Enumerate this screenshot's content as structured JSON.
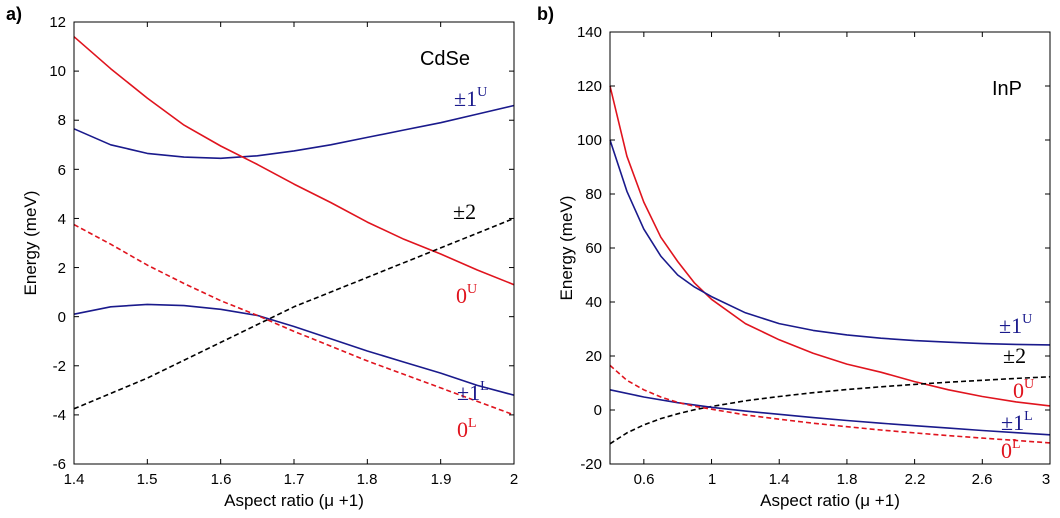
{
  "chart_data": [
    {
      "type": "line",
      "panel_label": "a)",
      "material": "CdSe",
      "xlabel": "Aspect ratio (μ +1)",
      "ylabel": "Energy (meV)",
      "xlim": [
        1.4,
        2.0
      ],
      "ylim": [
        -6,
        12
      ],
      "xticks": [
        "1.4",
        "1.5",
        "1.6",
        "1.7",
        "1.8",
        "1.9",
        "2"
      ],
      "yticks": [
        "-6",
        "-4",
        "-2",
        "0",
        "2",
        "4",
        "6",
        "8",
        "10",
        "12"
      ],
      "grid": false,
      "series": [
        {
          "name": "±1",
          "sup": "U",
          "color": "#1a1a8c",
          "dash": false,
          "x": [
            1.4,
            1.45,
            1.5,
            1.55,
            1.6,
            1.65,
            1.7,
            1.75,
            1.8,
            1.85,
            1.9,
            1.95,
            2.0
          ],
          "y": [
            7.65,
            7.0,
            6.65,
            6.5,
            6.45,
            6.55,
            6.75,
            7.0,
            7.3,
            7.6,
            7.9,
            8.25,
            8.6
          ]
        },
        {
          "name": "0",
          "sup": "U",
          "color": "#e0141e",
          "dash": false,
          "x": [
            1.4,
            1.45,
            1.5,
            1.55,
            1.6,
            1.65,
            1.7,
            1.75,
            1.8,
            1.85,
            1.9,
            1.95,
            2.0
          ],
          "y": [
            11.4,
            10.1,
            8.9,
            7.8,
            6.95,
            6.2,
            5.4,
            4.65,
            3.85,
            3.15,
            2.55,
            1.9,
            1.3
          ]
        },
        {
          "name": "±2",
          "sup": "",
          "color": "#000000",
          "dash": true,
          "x": [
            1.4,
            1.5,
            1.6,
            1.7,
            1.8,
            1.9,
            2.0
          ],
          "y": [
            -3.75,
            -2.5,
            -1.05,
            0.4,
            1.6,
            2.8,
            4.0
          ]
        },
        {
          "name": "±1",
          "sup": "L",
          "color": "#1a1a8c",
          "dash": false,
          "x": [
            1.4,
            1.45,
            1.5,
            1.55,
            1.6,
            1.65,
            1.7,
            1.75,
            1.8,
            1.85,
            1.9,
            1.95,
            2.0
          ],
          "y": [
            0.1,
            0.4,
            0.5,
            0.45,
            0.3,
            0.05,
            -0.4,
            -0.9,
            -1.4,
            -1.85,
            -2.3,
            -2.8,
            -3.2
          ]
        },
        {
          "name": "0",
          "sup": "L",
          "color": "#e0141e",
          "dash": true,
          "x": [
            1.4,
            1.45,
            1.5,
            1.55,
            1.6,
            1.65,
            1.7,
            1.75,
            1.8,
            1.85,
            1.9,
            1.95,
            2.0
          ],
          "y": [
            3.75,
            2.95,
            2.1,
            1.35,
            0.65,
            0.05,
            -0.6,
            -1.2,
            -1.8,
            -2.35,
            -2.9,
            -3.45,
            -4.0
          ]
        }
      ]
    },
    {
      "type": "line",
      "panel_label": "b)",
      "material": "InP",
      "xlabel": "Aspect ratio (μ +1)",
      "ylabel": "Energy (meV)",
      "xlim": [
        0.4,
        3.0
      ],
      "ylim": [
        -20,
        140
      ],
      "xticks": [
        "0.6",
        "1",
        "1.4",
        "1.8",
        "2.2",
        "2.6",
        "3"
      ],
      "yticks": [
        "-20",
        "0",
        "20",
        "40",
        "60",
        "80",
        "100",
        "120",
        "140"
      ],
      "grid": false,
      "series": [
        {
          "name": "0",
          "sup": "U",
          "color": "#e0141e",
          "dash": false,
          "x": [
            0.4,
            0.5,
            0.6,
            0.7,
            0.8,
            0.9,
            1.0,
            1.2,
            1.4,
            1.6,
            1.8,
            2.0,
            2.2,
            2.4,
            2.6,
            2.8,
            3.0
          ],
          "y": [
            120,
            94,
            77,
            64,
            55,
            47,
            41,
            32,
            26,
            21,
            17,
            14,
            10.5,
            7.5,
            5,
            3,
            1.5
          ]
        },
        {
          "name": "±1",
          "sup": "U",
          "color": "#1a1a8c",
          "dash": false,
          "x": [
            0.4,
            0.5,
            0.6,
            0.7,
            0.8,
            0.9,
            1.0,
            1.2,
            1.4,
            1.6,
            1.8,
            2.0,
            2.2,
            2.4,
            2.6,
            2.8,
            3.0
          ],
          "y": [
            100,
            81,
            67,
            57,
            50,
            45.5,
            42,
            36,
            32,
            29.5,
            27.8,
            26.6,
            25.7,
            25.1,
            24.6,
            24.3,
            24.1
          ]
        },
        {
          "name": "±2",
          "sup": "",
          "color": "#000000",
          "dash": true,
          "x": [
            0.4,
            0.5,
            0.6,
            0.7,
            0.8,
            0.9,
            1.0,
            1.2,
            1.4,
            1.6,
            1.8,
            2.0,
            2.2,
            2.4,
            2.6,
            2.8,
            3.0
          ],
          "y": [
            -12.5,
            -8.5,
            -5.5,
            -3.2,
            -1.4,
            0.1,
            1.3,
            3.4,
            5.0,
            6.4,
            7.6,
            8.6,
            9.5,
            10.3,
            11.0,
            11.7,
            12.3
          ]
        },
        {
          "name": "±1",
          "sup": "L",
          "color": "#1a1a8c",
          "dash": false,
          "x": [
            0.4,
            0.6,
            0.8,
            1.0,
            1.2,
            1.4,
            1.6,
            1.8,
            2.0,
            2.2,
            2.4,
            2.6,
            2.8,
            3.0
          ],
          "y": [
            7.5,
            4.8,
            2.7,
            1.0,
            -0.4,
            -1.6,
            -2.8,
            -3.9,
            -4.9,
            -5.8,
            -6.7,
            -7.6,
            -8.4,
            -9.2
          ]
        },
        {
          "name": "0",
          "sup": "L",
          "color": "#e0141e",
          "dash": true,
          "x": [
            0.4,
            0.5,
            0.6,
            0.7,
            0.8,
            0.9,
            1.0,
            1.2,
            1.4,
            1.6,
            1.8,
            2.0,
            2.2,
            2.4,
            2.6,
            2.8,
            3.0
          ],
          "y": [
            16.5,
            11.0,
            7.5,
            4.8,
            2.8,
            1.4,
            0.3,
            -1.8,
            -3.4,
            -4.9,
            -6.2,
            -7.4,
            -8.5,
            -9.5,
            -10.4,
            -11.3,
            -12.2
          ]
        }
      ]
    }
  ]
}
